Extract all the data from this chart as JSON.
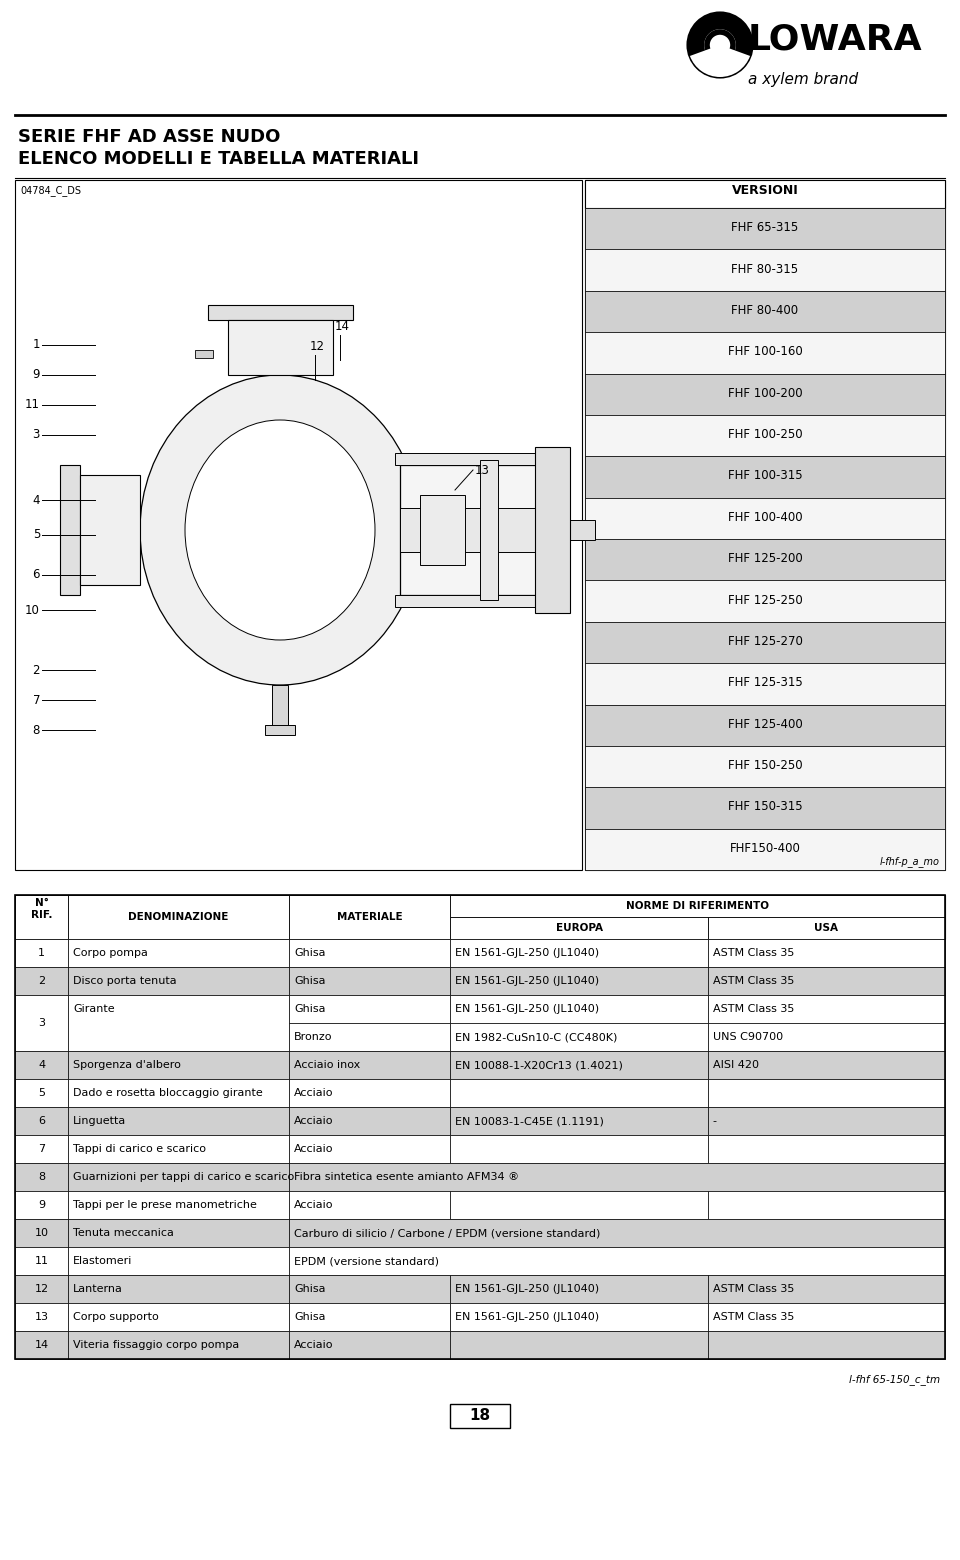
{
  "title_line1": "SERIE FHF AD ASSE NUDO",
  "title_line2": "ELENCO MODELLI E TABELLA MATERIALI",
  "doc_code": "04784_C_DS",
  "logo_text": "LOWARA",
  "logo_sub": "a xylem brand",
  "versioni_title": "VERSIONI",
  "versioni_items": [
    "FHF 65-315",
    "FHF 80-315",
    "FHF 80-400",
    "FHF 100-160",
    "FHF 100-200",
    "FHF 100-250",
    "FHF 100-315",
    "FHF 100-400",
    "FHF 125-200",
    "FHF 125-250",
    "FHF 125-270",
    "FHF 125-315",
    "FHF 125-400",
    "FHF 150-250",
    "FHF 150-315",
    "FHF150-400"
  ],
  "versioni_shaded": [
    0,
    2,
    4,
    6,
    8,
    10,
    12,
    14
  ],
  "diagram_ref": "l-fhf-p_a_mo",
  "footer_ref": "l-fhf 65-150_c_tm",
  "page_number": "18",
  "table_rows": [
    {
      "num": "1",
      "denominazione": "Corpo pompa",
      "materiale": "Ghisa",
      "europa": "EN 1561-GJL-250 (JL1040)",
      "usa": "ASTM Class 35",
      "shaded": false,
      "span": 1
    },
    {
      "num": "2",
      "denominazione": "Disco porta tenuta",
      "materiale": "Ghisa",
      "europa": "EN 1561-GJL-250 (JL1040)",
      "usa": "ASTM Class 35",
      "shaded": true,
      "span": 1
    },
    {
      "num": "3",
      "denominazione": "Girante",
      "materiale": "Ghisa",
      "europa": "EN 1561-GJL-250 (JL1040)",
      "usa": "ASTM Class 35",
      "shaded": false,
      "span": 2,
      "materiale2": "Bronzo",
      "europa2": "EN 1982-CuSn10-C (CC480K)",
      "usa2": "UNS C90700"
    },
    {
      "num": "4",
      "denominazione": "Sporgenza d'albero",
      "materiale": "Acciaio inox",
      "europa": "EN 10088-1-X20Cr13 (1.4021)",
      "usa": "AISI 420",
      "shaded": true,
      "span": 1
    },
    {
      "num": "5",
      "denominazione": "Dado e rosetta bloccaggio girante",
      "materiale": "Acciaio",
      "europa": "",
      "usa": "",
      "shaded": false,
      "span": 1
    },
    {
      "num": "6",
      "denominazione": "Linguetta",
      "materiale": "Acciaio",
      "europa": "EN 10083-1-C45E (1.1191)",
      "usa": "-",
      "shaded": true,
      "span": 1
    },
    {
      "num": "7",
      "denominazione": "Tappi di carico e scarico",
      "materiale": "Acciaio",
      "europa": "",
      "usa": "",
      "shaded": false,
      "span": 1
    },
    {
      "num": "8",
      "denominazione": "Guarnizioni per tappi di carico e scarico",
      "materiale": "Fibra sintetica esente amianto AFM34 ®",
      "europa": "",
      "usa": "",
      "shaded": true,
      "span": 1,
      "full_row": true
    },
    {
      "num": "9",
      "denominazione": "Tappi per le prese manometriche",
      "materiale": "Acciaio",
      "europa": "",
      "usa": "",
      "shaded": false,
      "span": 1
    },
    {
      "num": "10",
      "denominazione": "Tenuta meccanica",
      "materiale": "Carburo di silicio / Carbone / EPDM (versione standard)",
      "europa": "",
      "usa": "",
      "shaded": true,
      "span": 1,
      "full_row": true
    },
    {
      "num": "11",
      "denominazione": "Elastomeri",
      "materiale": "EPDM (versione standard)",
      "europa": "",
      "usa": "",
      "shaded": false,
      "span": 1,
      "full_row": true
    },
    {
      "num": "12",
      "denominazione": "Lanterna",
      "materiale": "Ghisa",
      "europa": "EN 1561-GJL-250 (JL1040)",
      "usa": "ASTM Class 35",
      "shaded": true,
      "span": 1
    },
    {
      "num": "13",
      "denominazione": "Corpo supporto",
      "materiale": "Ghisa",
      "europa": "EN 1561-GJL-250 (JL1040)",
      "usa": "ASTM Class 35",
      "shaded": false,
      "span": 1
    },
    {
      "num": "14",
      "denominazione": "Viteria fissaggio corpo pompa",
      "materiale": "Acciaio",
      "europa": "",
      "usa": "",
      "shaded": true,
      "span": 1
    }
  ],
  "bg_color": "#ffffff",
  "shaded_bg": "#d0d0d0",
  "versioni_shaded_bg": "#d0d0d0",
  "versioni_white_bg": "#f5f5f5"
}
